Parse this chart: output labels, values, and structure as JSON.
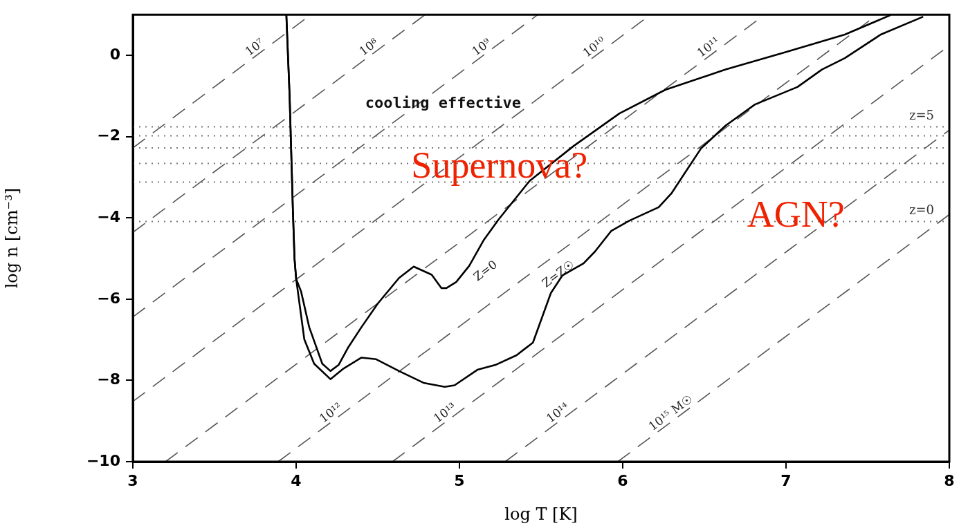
{
  "chart_data": {
    "type": "line",
    "xlabel": "log T [K]",
    "ylabel": "log n [cm⁻³]",
    "xlim": [
      3,
      8
    ],
    "xticks": [
      3,
      4,
      5,
      6,
      7,
      8
    ],
    "ylim": [
      -10,
      1
    ],
    "yticks": [
      -10,
      -8,
      -6,
      -4,
      -2,
      0
    ],
    "grid": false,
    "legend": false,
    "marker": "none",
    "series": [
      {
        "name": "Z=0",
        "color": "#000000",
        "line_style": "solid",
        "x": [
          3.94,
          3.96,
          3.98,
          3.99,
          4.0,
          4.03,
          4.08,
          4.16,
          4.21,
          4.26,
          4.32,
          4.4,
          4.5,
          4.63,
          4.72,
          4.83,
          4.89,
          4.92,
          4.98,
          5.06,
          5.15,
          5.24,
          5.43,
          5.7,
          5.98,
          6.26,
          6.63,
          7.0,
          7.36,
          7.64
        ],
        "values": [
          1,
          -1,
          -3.8,
          -5,
          -5.5,
          -5.81,
          -6.69,
          -7.59,
          -7.77,
          -7.62,
          -7.18,
          -6.69,
          -6.11,
          -5.48,
          -5.2,
          -5.4,
          -5.73,
          -5.73,
          -5.58,
          -5.18,
          -4.54,
          -4.04,
          -3.09,
          -2.23,
          -1.43,
          -0.85,
          -0.35,
          0.08,
          0.51,
          0.99
        ]
      },
      {
        "name": "Z=Z☉",
        "color": "#000000",
        "line_style": "solid",
        "x": [
          3.94,
          3.96,
          3.98,
          3.99,
          4.0,
          4.05,
          4.11,
          4.21,
          4.29,
          4.4,
          4.49,
          4.63,
          4.78,
          4.91,
          4.97,
          5.11,
          5.22,
          5.35,
          5.45,
          5.56,
          5.63,
          5.76,
          5.83,
          5.93,
          6.04,
          6.22,
          6.3,
          6.37,
          6.48,
          6.63,
          6.81,
          7.07,
          7.22,
          7.36,
          7.58,
          7.84
        ],
        "values": [
          1,
          -1,
          -3.8,
          -5,
          -5.5,
          -6.99,
          -7.59,
          -7.97,
          -7.71,
          -7.44,
          -7.48,
          -7.77,
          -8.06,
          -8.16,
          -8.12,
          -7.74,
          -7.62,
          -7.38,
          -7.07,
          -5.85,
          -5.42,
          -5.12,
          -4.83,
          -4.32,
          -4.07,
          -3.74,
          -3.39,
          -2.96,
          -2.29,
          -1.73,
          -1.21,
          -0.78,
          -0.35,
          -0.07,
          0.51,
          0.95
        ]
      },
      {
        "name": "10⁷",
        "color": "#555555",
        "line_style": "dashed",
        "x": [
          3,
          4.09
        ],
        "values": [
          -2.28,
          1
        ]
      },
      {
        "name": "10⁸",
        "color": "#555555",
        "line_style": "dashed",
        "x": [
          3,
          4.79
        ],
        "values": [
          -4.36,
          1
        ]
      },
      {
        "name": "10⁹",
        "color": "#555555",
        "line_style": "dashed",
        "x": [
          3,
          5.48
        ],
        "values": [
          -6.44,
          1
        ]
      },
      {
        "name": "10¹⁰",
        "color": "#555555",
        "line_style": "dashed",
        "x": [
          3,
          6.17
        ],
        "values": [
          -8.52,
          1
        ]
      },
      {
        "name": "10¹¹",
        "color": "#555555",
        "line_style": "dashed",
        "x": [
          3.2,
          6.87
        ],
        "values": [
          -10,
          1
        ]
      },
      {
        "name": "10¹²",
        "color": "#555555",
        "line_style": "dashed",
        "x": [
          3.89,
          7.56
        ],
        "values": [
          -10,
          1
        ]
      },
      {
        "name": "10¹³",
        "color": "#555555",
        "line_style": "dashed",
        "x": [
          4.59,
          8
        ],
        "values": [
          -10,
          0.24
        ]
      },
      {
        "name": "10¹⁴",
        "color": "#555555",
        "line_style": "dashed",
        "x": [
          5.28,
          8
        ],
        "values": [
          -10,
          -1.84
        ]
      },
      {
        "name": "10¹⁵ M☉",
        "color": "#555555",
        "line_style": "dashed",
        "x": [
          5.97,
          8
        ],
        "values": [
          -10,
          -3.92
        ]
      }
    ],
    "ref_lines": [
      {
        "axis": "y",
        "value": -1.76,
        "color": "#777777",
        "line_style": "dotted"
      },
      {
        "axis": "y",
        "value": -1.98,
        "color": "#777777",
        "line_style": "dotted"
      },
      {
        "axis": "y",
        "value": -2.28,
        "color": "#777777",
        "line_style": "dotted"
      },
      {
        "axis": "y",
        "value": -2.66,
        "color": "#777777",
        "line_style": "dotted"
      },
      {
        "axis": "y",
        "value": -3.12,
        "color": "#777777",
        "line_style": "dotted"
      },
      {
        "axis": "y",
        "value": -4.09,
        "color": "#777777",
        "line_style": "dotted"
      }
    ],
    "annotations": [
      "cooling effective",
      "Supernova?",
      "AGN?",
      "z=5",
      "z=0"
    ]
  }
}
